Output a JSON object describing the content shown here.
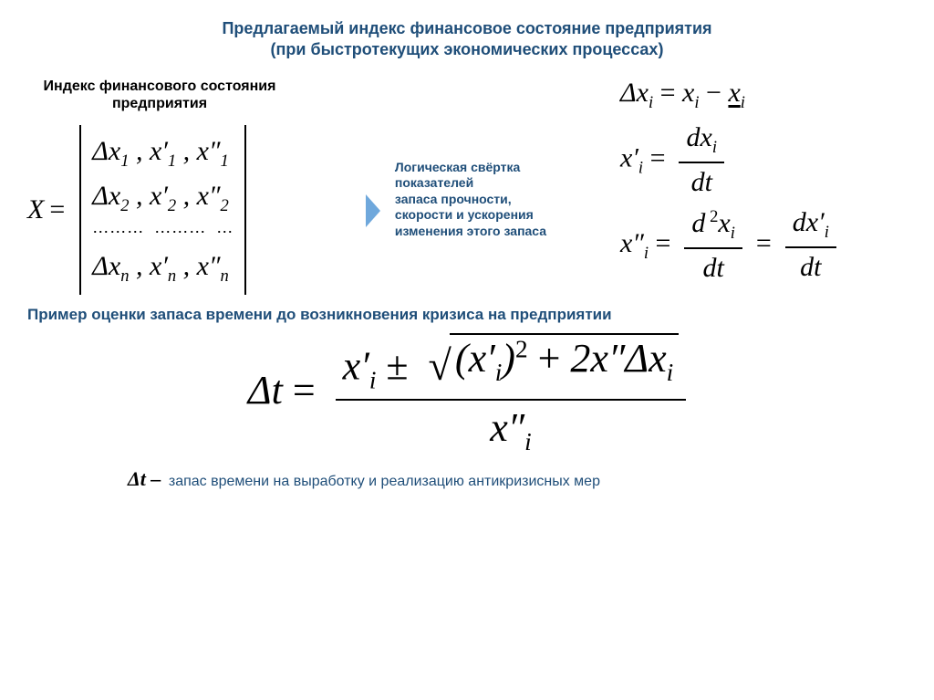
{
  "colors": {
    "heading": "#1f4e79",
    "arrow_fill": "#6fa8dc",
    "text": "#000000",
    "background": "#ffffff"
  },
  "typography": {
    "heading_font": "Arial",
    "math_font": "Times New Roman",
    "title_fontsize": 18,
    "subheading_fontsize": 16,
    "convolution_fontsize": 14,
    "math_fontsize": 30,
    "big_formula_fontsize": 44,
    "legend_fontsize": 16
  },
  "title_line1": "Предлагаемый индекс финансовое состояние предприятия",
  "title_line2": "(при быстротекущих экономических процессах)",
  "sub_heading_line1": "Индекс финансового состояния",
  "sub_heading_line2": "предприятия",
  "matrix": {
    "lhs": "X",
    "equals": "=",
    "rows_display": [
      "Δx₁ , x′₁ , x″₁",
      "Δx₂ , x′₂ , x″₂",
      "……… ……… ‥",
      "Δxₙ , x′ₙ , x″ₙ"
    ],
    "structure": {
      "rows": [
        "1",
        "2",
        "…",
        "n"
      ],
      "cols": [
        "Δx_i",
        "x′_i",
        "x″_i"
      ]
    }
  },
  "convolution": {
    "line1": "Логическая свёртка",
    "line2": " показателей",
    "line3": "запаса прочности,",
    "line4": "скорости и ускорения",
    "line5": "изменения этого запаса"
  },
  "defs": {
    "delta_display": "Δxᵢ = xᵢ − x̲ᵢ",
    "first_deriv_display": "x′ᵢ = dxᵢ / dt",
    "second_deriv_display": "x″ᵢ = d²xᵢ / dt = dx′ᵢ / dt",
    "first_deriv": {
      "num": "dxᵢ",
      "den": "dt",
      "lhs": "x′ᵢ"
    },
    "second_deriv": {
      "lhs": "x″ᵢ",
      "num1": "d²xᵢ",
      "den1": "dt",
      "num2": "dx′ᵢ",
      "den2": "dt"
    }
  },
  "example_heading": "Пример оценки запаса времени до возникновения кризиса на предприятии",
  "big_formula": {
    "display": "Δt = ( x′ᵢ ± √( (x′ᵢ)² + 2x″Δxᵢ ) ) / x″ᵢ",
    "lhs": "Δt",
    "num_before": "x′ᵢ ±",
    "sqrt_body": "(x′ᵢ)² + 2x″Δxᵢ",
    "den": "x″ᵢ"
  },
  "legend": {
    "symbol": "Δt –",
    "text": " запас времени на выработку и реализацию антикризисных мер"
  }
}
